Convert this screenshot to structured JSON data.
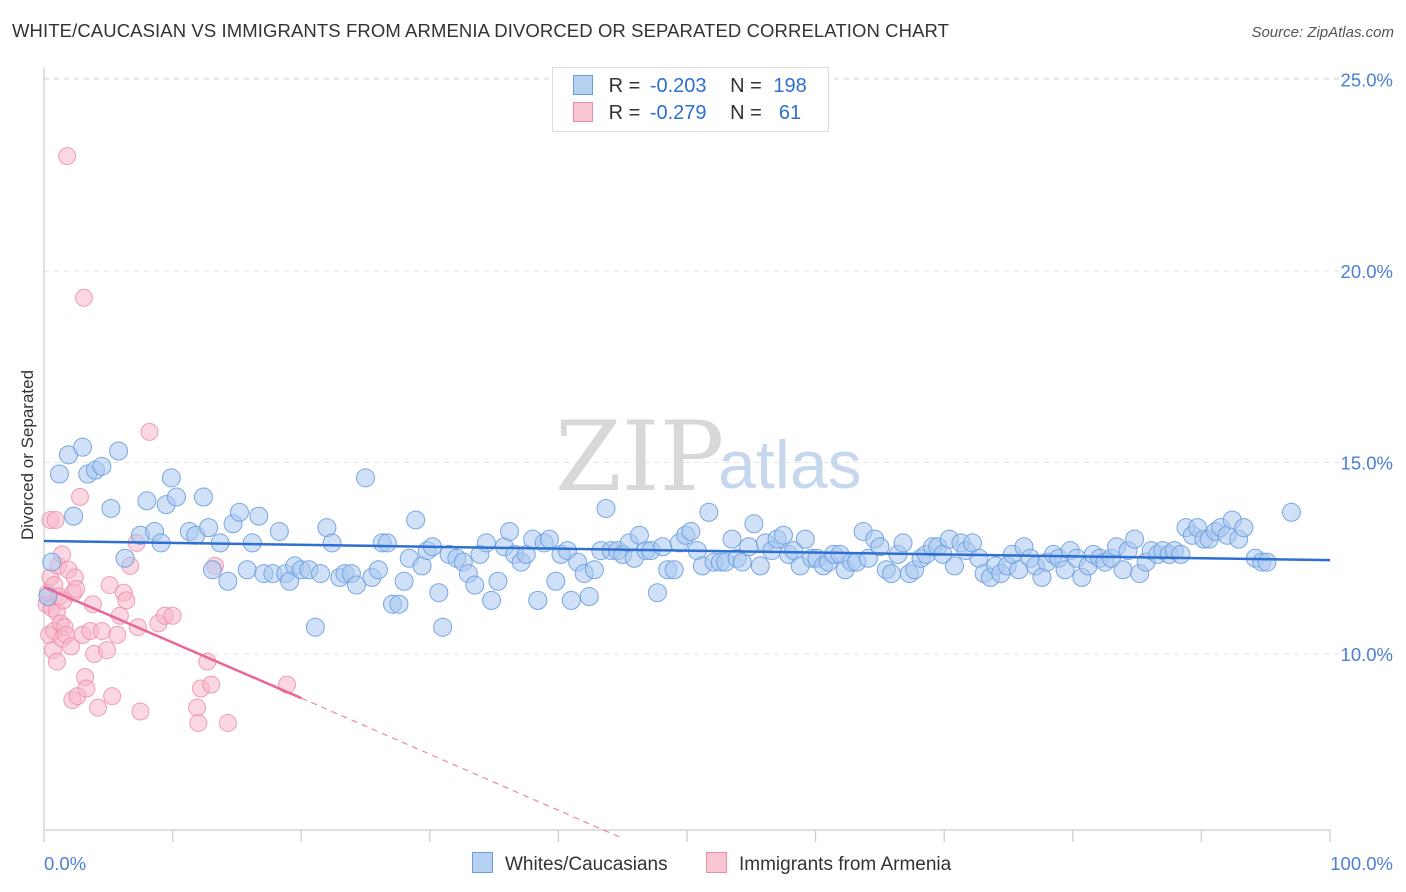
{
  "title": "WHITE/CAUCASIAN VS IMMIGRANTS FROM ARMENIA DIVORCED OR SEPARATED CORRELATION CHART",
  "source": "Source: ZipAtlas.com",
  "watermark": {
    "zip": "ZIP",
    "atlas": "atlas"
  },
  "legend": {
    "rows": [
      {
        "r_label": "R =",
        "r_value": "-0.203",
        "n_label": "N =",
        "n_value": "198"
      },
      {
        "r_label": "R =",
        "r_value": "-0.279",
        "n_label": "N =",
        "n_value": " 61"
      }
    ]
  },
  "colors": {
    "blue_fill": "#a9c8f0",
    "blue_stroke": "#6a9de0",
    "blue_line": "#2f6fd0",
    "pink_fill": "#f7b6c8",
    "pink_stroke": "#ee8aa8",
    "pink_line": "#e8679a",
    "grid": "#e3e3e3",
    "tick_text": "#4a7fd4"
  },
  "chart_data": {
    "type": "scatter",
    "title": "WHITE/CAUCASIAN VS IMMIGRANTS FROM ARMENIA DIVORCED OR SEPARATED CORRELATION CHART",
    "xlabel": "",
    "ylabel": "Divorced or Separated",
    "xlim": [
      0,
      100
    ],
    "ylim": [
      5,
      26.5
    ],
    "x_tick_labels": [
      "0.0%",
      "100.0%"
    ],
    "y_ticks": [
      10,
      15,
      20,
      25
    ],
    "y_tick_labels": [
      "10.0%",
      "15.0%",
      "20.0%",
      "25.0%"
    ],
    "grid": true,
    "legend_position": "top-center",
    "series": [
      {
        "name": "Whites/Caucasians",
        "r": -0.203,
        "n": 198,
        "trend": {
          "x0": 0,
          "y0": 12.95,
          "x1": 100,
          "y1": 12.45
        },
        "points": [
          [
            0.3,
            11.5
          ],
          [
            0.6,
            12.4
          ],
          [
            1.2,
            14.7
          ],
          [
            1.9,
            15.2
          ],
          [
            2.3,
            13.6
          ],
          [
            3.0,
            15.4
          ],
          [
            3.4,
            14.7
          ],
          [
            4.0,
            14.8
          ],
          [
            4.5,
            14.9
          ],
          [
            5.2,
            13.8
          ],
          [
            5.8,
            15.3
          ],
          [
            6.3,
            12.5
          ],
          [
            7.5,
            13.1
          ],
          [
            8.0,
            14.0
          ],
          [
            8.6,
            13.2
          ],
          [
            9.1,
            12.9
          ],
          [
            9.5,
            13.9
          ],
          [
            9.9,
            14.6
          ],
          [
            10.3,
            14.1
          ],
          [
            11.3,
            13.2
          ],
          [
            11.8,
            13.1
          ],
          [
            12.4,
            14.1
          ],
          [
            12.8,
            13.3
          ],
          [
            13.1,
            12.2
          ],
          [
            13.7,
            12.9
          ],
          [
            14.3,
            11.9
          ],
          [
            14.7,
            13.4
          ],
          [
            15.2,
            13.7
          ],
          [
            15.8,
            12.2
          ],
          [
            16.2,
            12.9
          ],
          [
            16.7,
            13.6
          ],
          [
            17.1,
            12.1
          ],
          [
            17.8,
            12.1
          ],
          [
            18.3,
            13.2
          ],
          [
            18.8,
            12.1
          ],
          [
            19.1,
            11.9
          ],
          [
            19.5,
            12.3
          ],
          [
            20.0,
            12.2
          ],
          [
            20.6,
            12.2
          ],
          [
            21.1,
            10.7
          ],
          [
            21.5,
            12.1
          ],
          [
            22.0,
            13.3
          ],
          [
            22.4,
            12.9
          ],
          [
            23.0,
            12.0
          ],
          [
            23.4,
            12.1
          ],
          [
            23.9,
            12.1
          ],
          [
            24.3,
            11.8
          ],
          [
            25.0,
            14.6
          ],
          [
            25.5,
            12.0
          ],
          [
            26.0,
            12.2
          ],
          [
            26.3,
            12.9
          ],
          [
            26.7,
            12.9
          ],
          [
            27.1,
            11.3
          ],
          [
            27.6,
            11.3
          ],
          [
            28.0,
            11.9
          ],
          [
            28.4,
            12.5
          ],
          [
            28.9,
            13.5
          ],
          [
            29.4,
            12.3
          ],
          [
            29.8,
            12.7
          ],
          [
            30.2,
            12.8
          ],
          [
            30.7,
            11.6
          ],
          [
            31.0,
            10.7
          ],
          [
            31.5,
            12.6
          ],
          [
            32.1,
            12.5
          ],
          [
            32.6,
            12.4
          ],
          [
            33.0,
            12.1
          ],
          [
            33.5,
            11.8
          ],
          [
            33.9,
            12.6
          ],
          [
            34.4,
            12.9
          ],
          [
            34.8,
            11.4
          ],
          [
            35.3,
            11.9
          ],
          [
            35.8,
            12.8
          ],
          [
            36.2,
            13.2
          ],
          [
            36.6,
            12.6
          ],
          [
            37.1,
            12.4
          ],
          [
            37.5,
            12.6
          ],
          [
            38.0,
            13.0
          ],
          [
            38.4,
            11.4
          ],
          [
            38.9,
            12.9
          ],
          [
            39.3,
            13.0
          ],
          [
            39.8,
            11.9
          ],
          [
            40.2,
            12.6
          ],
          [
            40.7,
            12.7
          ],
          [
            41.0,
            11.4
          ],
          [
            41.5,
            12.4
          ],
          [
            42.0,
            12.1
          ],
          [
            42.4,
            11.5
          ],
          [
            42.8,
            12.2
          ],
          [
            43.3,
            12.7
          ],
          [
            43.7,
            13.8
          ],
          [
            44.1,
            12.7
          ],
          [
            44.6,
            12.7
          ],
          [
            45.0,
            12.6
          ],
          [
            45.5,
            12.9
          ],
          [
            45.9,
            12.5
          ],
          [
            46.3,
            13.1
          ],
          [
            46.8,
            12.7
          ],
          [
            47.2,
            12.7
          ],
          [
            47.7,
            11.6
          ],
          [
            48.1,
            12.8
          ],
          [
            48.5,
            12.2
          ],
          [
            49.0,
            12.2
          ],
          [
            49.4,
            12.9
          ],
          [
            49.9,
            13.1
          ],
          [
            50.3,
            13.2
          ],
          [
            50.8,
            12.7
          ],
          [
            51.2,
            12.3
          ],
          [
            51.7,
            13.7
          ],
          [
            52.1,
            12.4
          ],
          [
            52.6,
            12.4
          ],
          [
            53.0,
            12.4
          ],
          [
            53.5,
            13.0
          ],
          [
            53.9,
            12.5
          ],
          [
            54.3,
            12.4
          ],
          [
            54.8,
            12.8
          ],
          [
            55.2,
            13.4
          ],
          [
            55.7,
            12.3
          ],
          [
            56.1,
            12.9
          ],
          [
            56.6,
            12.7
          ],
          [
            57.0,
            13.0
          ],
          [
            57.5,
            13.1
          ],
          [
            57.9,
            12.6
          ],
          [
            58.3,
            12.7
          ],
          [
            58.8,
            12.3
          ],
          [
            59.2,
            13.0
          ],
          [
            59.7,
            12.5
          ],
          [
            60.1,
            12.5
          ],
          [
            60.6,
            12.3
          ],
          [
            61.0,
            12.4
          ],
          [
            61.4,
            12.6
          ],
          [
            61.9,
            12.6
          ],
          [
            62.3,
            12.2
          ],
          [
            62.8,
            12.4
          ],
          [
            63.2,
            12.4
          ],
          [
            63.7,
            13.2
          ],
          [
            64.1,
            12.5
          ],
          [
            64.6,
            13.0
          ],
          [
            65.0,
            12.8
          ],
          [
            65.5,
            12.2
          ],
          [
            65.9,
            12.1
          ],
          [
            66.4,
            12.6
          ],
          [
            66.8,
            12.9
          ],
          [
            67.3,
            12.1
          ],
          [
            67.7,
            12.2
          ],
          [
            68.2,
            12.5
          ],
          [
            68.6,
            12.6
          ],
          [
            69.1,
            12.8
          ],
          [
            69.5,
            12.8
          ],
          [
            69.9,
            12.6
          ],
          [
            70.4,
            13.0
          ],
          [
            70.8,
            12.3
          ],
          [
            71.3,
            12.9
          ],
          [
            71.7,
            12.7
          ],
          [
            72.2,
            12.9
          ],
          [
            72.7,
            12.5
          ],
          [
            73.1,
            12.1
          ],
          [
            73.6,
            12.0
          ],
          [
            74.0,
            12.3
          ],
          [
            74.4,
            12.1
          ],
          [
            74.9,
            12.3
          ],
          [
            75.3,
            12.6
          ],
          [
            75.8,
            12.2
          ],
          [
            76.2,
            12.8
          ],
          [
            76.7,
            12.5
          ],
          [
            77.1,
            12.3
          ],
          [
            77.6,
            12.0
          ],
          [
            78.0,
            12.4
          ],
          [
            78.5,
            12.6
          ],
          [
            78.9,
            12.5
          ],
          [
            79.4,
            12.2
          ],
          [
            79.8,
            12.7
          ],
          [
            80.3,
            12.5
          ],
          [
            80.7,
            12.0
          ],
          [
            81.2,
            12.3
          ],
          [
            81.6,
            12.6
          ],
          [
            82.1,
            12.5
          ],
          [
            82.5,
            12.4
          ],
          [
            83.0,
            12.5
          ],
          [
            83.4,
            12.8
          ],
          [
            83.9,
            12.2
          ],
          [
            84.3,
            12.7
          ],
          [
            84.8,
            13.0
          ],
          [
            85.2,
            12.1
          ],
          [
            85.7,
            12.4
          ],
          [
            86.1,
            12.7
          ],
          [
            86.6,
            12.6
          ],
          [
            87.0,
            12.7
          ],
          [
            87.5,
            12.6
          ],
          [
            87.9,
            12.7
          ],
          [
            88.4,
            12.6
          ],
          [
            88.8,
            13.3
          ],
          [
            89.3,
            13.1
          ],
          [
            89.7,
            13.3
          ],
          [
            90.2,
            13.0
          ],
          [
            90.6,
            13.0
          ],
          [
            91.1,
            13.2
          ],
          [
            91.5,
            13.3
          ],
          [
            92.0,
            13.1
          ],
          [
            92.4,
            13.5
          ],
          [
            92.9,
            13.0
          ],
          [
            93.3,
            13.3
          ],
          [
            94.2,
            12.5
          ],
          [
            94.7,
            12.4
          ],
          [
            95.1,
            12.4
          ],
          [
            97.0,
            13.7
          ]
        ]
      },
      {
        "name": "Immigrants from Armenia",
        "r": -0.279,
        "n": 61,
        "trend": {
          "x0": 0,
          "y0": 11.75,
          "x1": 20.0,
          "y1": 8.85
        },
        "trend_dashed": {
          "x0": 20.0,
          "y0": 8.85,
          "x1": 44.9,
          "y1": 5.2
        },
        "points": [
          [
            0.2,
            11.3
          ],
          [
            0.3,
            11.6
          ],
          [
            0.4,
            10.5
          ],
          [
            0.5,
            12.0
          ],
          [
            0.5,
            13.5
          ],
          [
            0.6,
            11.2
          ],
          [
            0.7,
            10.1
          ],
          [
            0.8,
            11.8
          ],
          [
            0.8,
            10.6
          ],
          [
            0.9,
            13.5
          ],
          [
            1.0,
            9.8
          ],
          [
            1.0,
            11.1
          ],
          [
            1.1,
            12.3
          ],
          [
            1.2,
            11.5
          ],
          [
            1.3,
            10.8
          ],
          [
            1.4,
            12.6
          ],
          [
            1.4,
            10.4
          ],
          [
            1.5,
            11.4
          ],
          [
            1.6,
            10.7
          ],
          [
            1.7,
            10.5
          ],
          [
            1.8,
            23.0
          ],
          [
            1.9,
            12.2
          ],
          [
            2.1,
            10.2
          ],
          [
            2.2,
            8.8
          ],
          [
            2.3,
            11.6
          ],
          [
            2.4,
            12.0
          ],
          [
            2.5,
            11.7
          ],
          [
            2.6,
            8.9
          ],
          [
            2.8,
            14.1
          ],
          [
            3.0,
            10.5
          ],
          [
            3.2,
            9.4
          ],
          [
            3.3,
            9.1
          ],
          [
            3.6,
            10.6
          ],
          [
            3.8,
            11.3
          ],
          [
            3.9,
            10.0
          ],
          [
            4.2,
            8.6
          ],
          [
            4.5,
            10.6
          ],
          [
            4.9,
            10.1
          ],
          [
            5.1,
            11.8
          ],
          [
            5.3,
            8.9
          ],
          [
            5.7,
            10.5
          ],
          [
            5.9,
            11.0
          ],
          [
            6.2,
            11.6
          ],
          [
            6.4,
            11.4
          ],
          [
            6.7,
            12.3
          ],
          [
            7.2,
            12.9
          ],
          [
            7.3,
            10.7
          ],
          [
            7.5,
            8.5
          ],
          [
            8.2,
            15.8
          ],
          [
            8.9,
            10.8
          ],
          [
            9.4,
            11.0
          ],
          [
            10.0,
            11.0
          ],
          [
            11.9,
            8.6
          ],
          [
            12.0,
            8.2
          ],
          [
            12.2,
            9.1
          ],
          [
            12.7,
            9.8
          ],
          [
            13.0,
            9.2
          ],
          [
            13.3,
            12.3
          ],
          [
            14.3,
            8.2
          ],
          [
            18.9,
            9.2
          ],
          [
            3.1,
            19.3
          ]
        ]
      }
    ]
  },
  "bottom_legend": {
    "items": [
      {
        "label": "Whites/Caucasians"
      },
      {
        "label": "Immigrants from Armenia"
      }
    ]
  }
}
